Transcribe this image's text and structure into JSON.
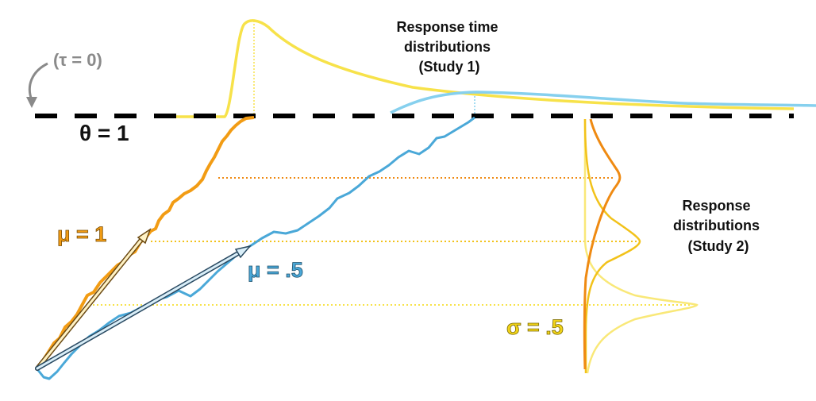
{
  "labels": {
    "tau": "(τ = 0)",
    "theta": "θ = 1",
    "mu_high": "μ = 1",
    "mu_low": "μ = .5",
    "sigma": "σ = .5",
    "rt_title": [
      "Response time",
      "distributions",
      "(Study 1)"
    ],
    "resp_title": [
      "Response",
      "distributions",
      "(Study 2)"
    ]
  },
  "colors": {
    "orange_path": "#f29c14",
    "blue_path": "#4aa8d8",
    "yellow_dist": "#f7e24a",
    "yellow_light": "#f9e878",
    "blue_dist": "#86d0ee",
    "orange_dist": "#ef8a12",
    "threshold": "#000000",
    "annotation": "#8a8a8a"
  }
}
